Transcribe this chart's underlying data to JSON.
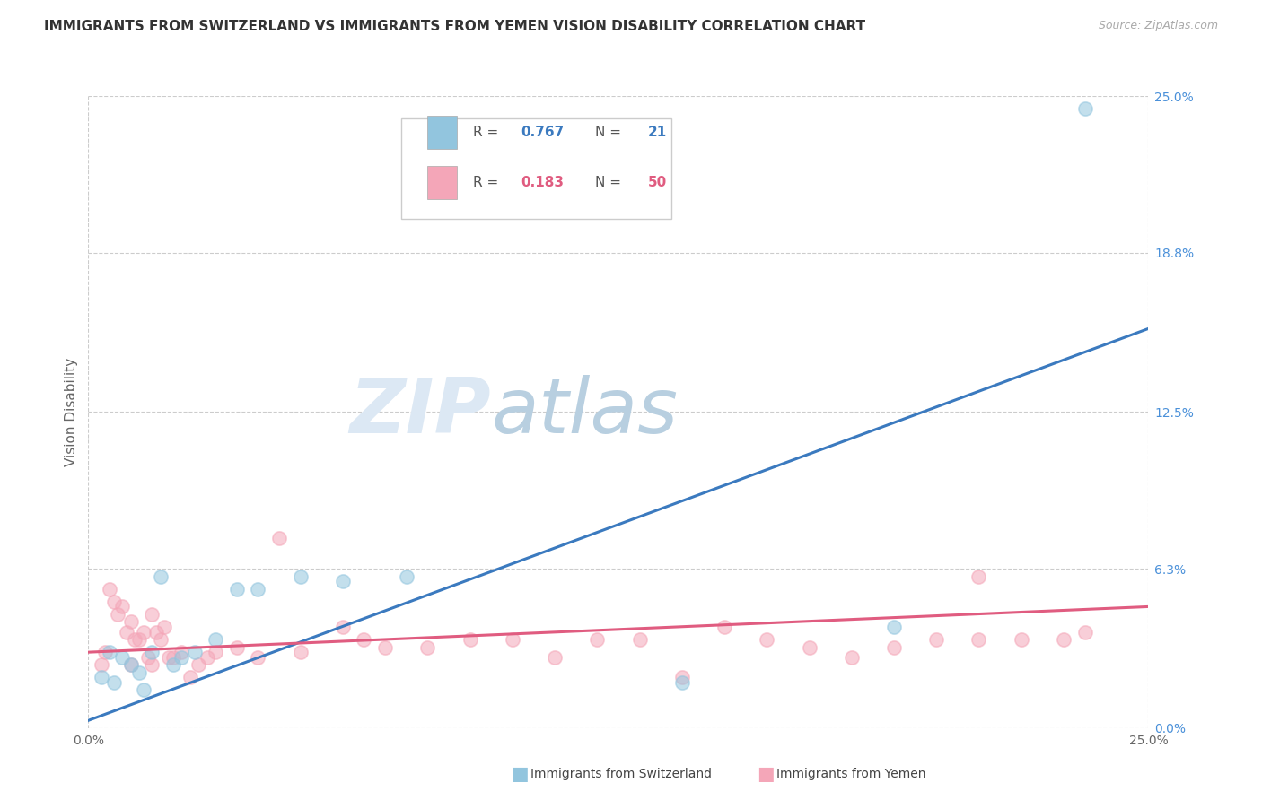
{
  "title": "IMMIGRANTS FROM SWITZERLAND VS IMMIGRANTS FROM YEMEN VISION DISABILITY CORRELATION CHART",
  "source": "Source: ZipAtlas.com",
  "ylabel": "Vision Disability",
  "xlim": [
    0.0,
    0.25
  ],
  "ylim": [
    0.0,
    0.25
  ],
  "y_tick_values": [
    0.0,
    0.063,
    0.125,
    0.188,
    0.25
  ],
  "y_tick_labels": [
    "0.0%",
    "6.3%",
    "12.5%",
    "18.8%",
    "25.0%"
  ],
  "x_tick_labels": [
    "0.0%",
    "25.0%"
  ],
  "grid_color": "#cccccc",
  "background_color": "#ffffff",
  "series1_color": "#92c5de",
  "series2_color": "#f4a6b8",
  "series1_label": "Immigrants from Switzerland",
  "series2_label": "Immigrants from Yemen",
  "line1_color": "#3b7abf",
  "line2_color": "#e05c80",
  "line1_y_start": 0.003,
  "line1_y_end": 0.158,
  "line2_y_start": 0.03,
  "line2_y_end": 0.048,
  "legend_r1_val": "0.767",
  "legend_n1_val": "21",
  "legend_r2_val": "0.183",
  "legend_n2_val": "50",
  "series1_x": [
    0.003,
    0.005,
    0.006,
    0.008,
    0.01,
    0.012,
    0.013,
    0.015,
    0.017,
    0.02,
    0.022,
    0.025,
    0.03,
    0.035,
    0.04,
    0.05,
    0.06,
    0.075,
    0.14,
    0.19,
    0.235
  ],
  "series1_y": [
    0.02,
    0.03,
    0.018,
    0.028,
    0.025,
    0.022,
    0.015,
    0.03,
    0.06,
    0.025,
    0.028,
    0.03,
    0.035,
    0.055,
    0.055,
    0.06,
    0.058,
    0.06,
    0.018,
    0.04,
    0.245
  ],
  "series2_x": [
    0.003,
    0.004,
    0.005,
    0.006,
    0.007,
    0.008,
    0.009,
    0.01,
    0.01,
    0.011,
    0.012,
    0.013,
    0.014,
    0.015,
    0.015,
    0.016,
    0.017,
    0.018,
    0.019,
    0.02,
    0.022,
    0.024,
    0.026,
    0.028,
    0.03,
    0.035,
    0.04,
    0.045,
    0.05,
    0.06,
    0.065,
    0.07,
    0.08,
    0.09,
    0.1,
    0.11,
    0.12,
    0.13,
    0.14,
    0.15,
    0.16,
    0.17,
    0.18,
    0.19,
    0.2,
    0.21,
    0.22,
    0.23,
    0.235,
    0.21
  ],
  "series2_y": [
    0.025,
    0.03,
    0.055,
    0.05,
    0.045,
    0.048,
    0.038,
    0.025,
    0.042,
    0.035,
    0.035,
    0.038,
    0.028,
    0.025,
    0.045,
    0.038,
    0.035,
    0.04,
    0.028,
    0.028,
    0.03,
    0.02,
    0.025,
    0.028,
    0.03,
    0.032,
    0.028,
    0.075,
    0.03,
    0.04,
    0.035,
    0.032,
    0.032,
    0.035,
    0.035,
    0.028,
    0.035,
    0.035,
    0.02,
    0.04,
    0.035,
    0.032,
    0.028,
    0.032,
    0.035,
    0.035,
    0.035,
    0.035,
    0.038,
    0.06
  ]
}
